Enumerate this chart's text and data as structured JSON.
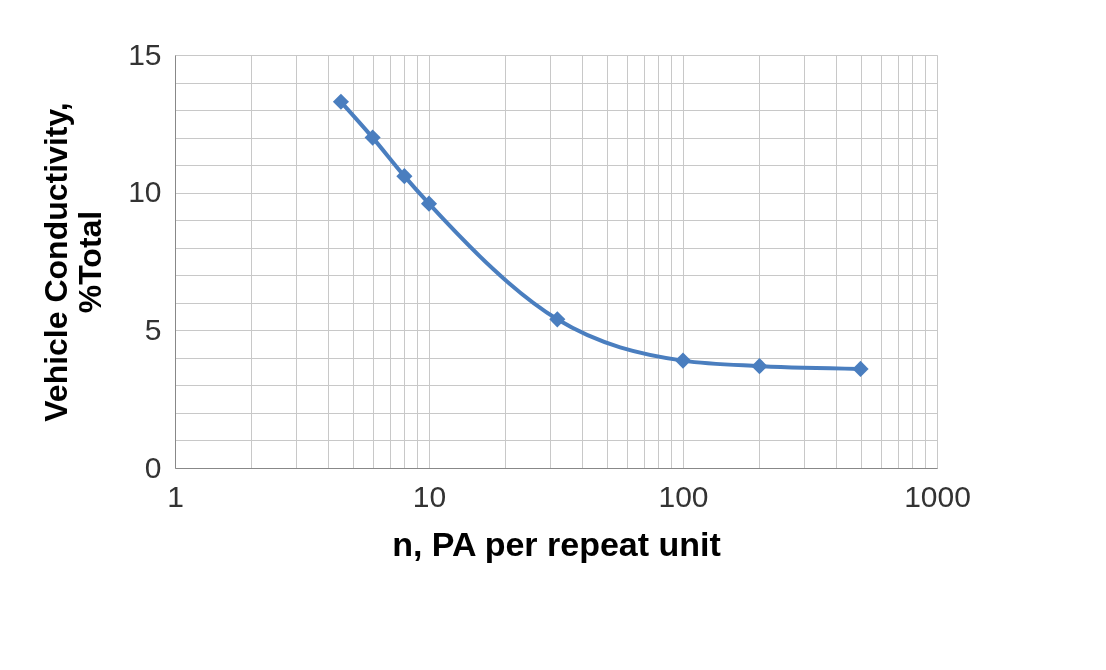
{
  "chart_data": {
    "type": "line",
    "xlabel": "n, PA per repeat unit",
    "ylabel": "Vehicle Conductivity, %Total",
    "x": [
      4.5,
      6,
      8,
      10,
      32,
      100,
      200,
      500
    ],
    "series": [
      {
        "color": "#4a7ebf",
        "values": [
          13.3,
          12.0,
          10.6,
          9.6,
          5.4,
          3.9,
          3.7,
          3.6
        ]
      }
    ],
    "log": "x",
    "xlim": [
      1,
      1000
    ],
    "ylim": [
      0,
      15
    ],
    "xticks": [
      1,
      {
        "value": 2,
        "label": null
      },
      {
        "value": 3,
        "label": null
      },
      {
        "value": 4,
        "label": null
      },
      {
        "value": 5,
        "label": null
      },
      {
        "value": 6,
        "label": null
      },
      {
        "value": 7,
        "label": null
      },
      {
        "value": 8,
        "label": null
      },
      {
        "value": 9,
        "label": null
      },
      10,
      {
        "value": 20,
        "label": null
      },
      {
        "value": 30,
        "label": null
      },
      {
        "value": 40,
        "label": null
      },
      {
        "value": 50,
        "label": null
      },
      {
        "value": 60,
        "label": null
      },
      {
        "value": 70,
        "label": null
      },
      {
        "value": 80,
        "label": null
      },
      {
        "value": 90,
        "label": null
      },
      100,
      {
        "value": 200,
        "label": null
      },
      {
        "value": 300,
        "label": null
      },
      {
        "value": 400,
        "label": null
      },
      {
        "value": 500,
        "label": null
      },
      {
        "value": 600,
        "label": null
      },
      {
        "value": 700,
        "label": null
      },
      {
        "value": 800,
        "label": null
      },
      {
        "value": 900,
        "label": null
      },
      1000
    ],
    "yticks": [
      0,
      {
        "value": 1,
        "label": null
      },
      {
        "value": 2,
        "label": null
      },
      {
        "value": 3,
        "label": null
      },
      {
        "value": 4,
        "label": null
      },
      5,
      {
        "value": 6,
        "label": null
      },
      {
        "value": 7,
        "label": null
      },
      {
        "value": 8,
        "label": null
      },
      {
        "value": 9,
        "label": null
      },
      10,
      {
        "value": 11,
        "label": null
      },
      {
        "value": 12,
        "label": null
      },
      {
        "value": 13,
        "label": null
      },
      {
        "value": 14,
        "label": null
      },
      15
    ],
    "grid": true,
    "marker": "diamond",
    "line_style": "solid",
    "legend": false
  }
}
